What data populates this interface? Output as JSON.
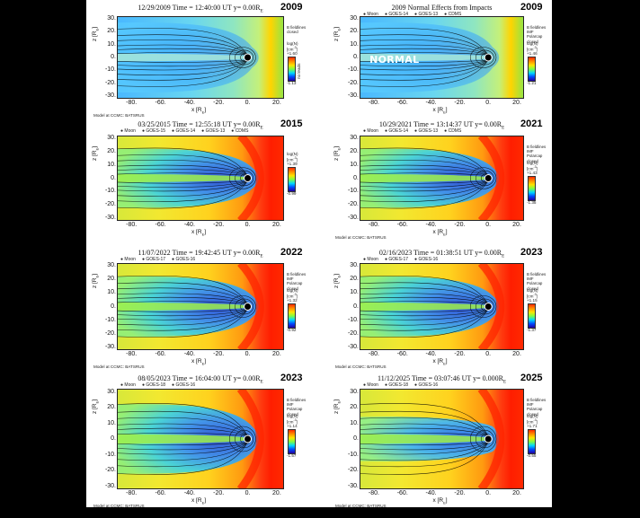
{
  "colors": {
    "page_bg": "#000000",
    "sheet_bg": "#ffffff"
  },
  "panels": [
    {
      "id": "p2009a",
      "title": "12/29/2009 Time = 12:40:00 UT y= 0.00R",
      "subscript": "E",
      "year": "2009",
      "legend": [],
      "field_types": [
        "B fieldlines",
        "closed"
      ],
      "cbar_title": "log(N)",
      "cbar_unit": "[cm",
      "cbar_max": "+1.60",
      "cbar_min": "-1.13",
      "cbar_side_label": "no leads",
      "model": "Model at CCMC: BATSRUS",
      "normal_label": ""
    },
    {
      "id": "p2009b",
      "title": "2009 Normal Effects from Impacts",
      "subscript": "",
      "year": "2009",
      "legend": [
        "Moon",
        "GOES-14",
        "GOES-13",
        "CDMS"
      ],
      "field_types": [
        "B fieldlines",
        "IMF",
        "Polarcap",
        "closed"
      ],
      "cbar_title": "log(N)",
      "cbar_unit": "[cm",
      "cbar_max": "+1.46",
      "cbar_min": "-1.21",
      "cbar_side_label": "",
      "model": "",
      "normal_label": "NORMAL"
    },
    {
      "id": "p2015",
      "title": "03/25/2015 Time = 12:55:18 UT y= 0.00R",
      "subscript": "E",
      "year": "2015",
      "legend": [
        "Moon",
        "GOES-15",
        "GOES-14",
        "GOES-13",
        "CDMS"
      ],
      "field_types": [],
      "cbar_title": "log(N)",
      "cbar_unit": "[cm",
      "cbar_max": "+1.39",
      "cbar_min": "-0.99",
      "cbar_side_label": "",
      "model": "",
      "normal_label": ""
    },
    {
      "id": "p2021",
      "title": "10/29/2021 Time = 13:14:37 UT y= 0.00R",
      "subscript": "E",
      "year": "2021",
      "legend": [
        "Moon",
        "GOES-14",
        "GOES-13",
        "CDMS"
      ],
      "field_types": [
        "B fieldlines",
        "IMF",
        "Polarcap",
        "closed"
      ],
      "cbar_title": "log(N)",
      "cbar_unit": "[cm",
      "cbar_max": "+1.43",
      "cbar_min": "-1.35",
      "cbar_side_label": "",
      "model": "Model at CCMC: BATSRUS",
      "normal_label": ""
    },
    {
      "id": "p2022",
      "title": "11/07/2022 Time = 19:42:45 UT y= 0.00R",
      "subscript": "E",
      "year": "2022",
      "legend": [
        "Moon",
        "GOES-17",
        "GOES-16"
      ],
      "field_types": [
        "B fieldlines",
        "IMF",
        "Polarcap",
        "closed"
      ],
      "cbar_title": "log(N)",
      "cbar_unit": "[cm",
      "cbar_max": "+1.32",
      "cbar_min": "-0.92",
      "cbar_side_label": "",
      "model": "Model at CCMC: BATSRUS",
      "normal_label": ""
    },
    {
      "id": "p2023a",
      "title": "02/16/2023 Time = 01:38:51 UT y= 0.00R",
      "subscript": "E",
      "year": "2023",
      "legend": [
        "Moon",
        "GOES-17",
        "GOES-16"
      ],
      "field_types": [
        "B fieldlines",
        "IMF",
        "Polarcap",
        "closed"
      ],
      "cbar_title": "log(N)",
      "cbar_unit": "[cm",
      "cbar_max": "+1.15",
      "cbar_min": "-1.37",
      "cbar_side_label": "",
      "model": "Model at CCMC: BATSRUS",
      "normal_label": ""
    },
    {
      "id": "p2023b",
      "title": "08/05/2023 Time = 16:04:00 UT y= 0.00R",
      "subscript": "E",
      "year": "2023",
      "legend": [
        "Moon",
        "GOES-18",
        "GOES-16"
      ],
      "field_types": [
        "B fieldlines",
        "IMF",
        "Polarcap",
        "closed"
      ],
      "cbar_title": "log(N)",
      "cbar_unit": "[cm",
      "cbar_max": "+1.14",
      "cbar_min": "-1.57",
      "cbar_side_label": "",
      "model": "Model at CCMC: BATSRUS",
      "normal_label": ""
    },
    {
      "id": "p2025",
      "title": "11/12/2025 Time = 03:07:46 UT y= 0.000R",
      "subscript": "E",
      "year": "2025",
      "legend": [
        "Moon",
        "GOES-18",
        "GOES-16"
      ],
      "field_types": [
        "B fieldlines",
        "IMF",
        "Polarcap",
        "closed"
      ],
      "cbar_title": "log(N)",
      "cbar_unit": "[cm",
      "cbar_max": "+1.71",
      "cbar_min": "-0.55",
      "cbar_side_label": "",
      "model": "Model at CCMC: BATSRUS",
      "normal_label": ""
    }
  ],
  "chart_data": [
    {
      "type": "heatmap",
      "title": "12/29/2009 Time = 12:40:00 UT y= 0.00R",
      "xlabel": "x [R",
      "ylabel": "z [R",
      "xlim": [
        -90,
        25
      ],
      "ylim": [
        -32,
        32
      ],
      "xticks": [
        "-80.",
        "-60.",
        "-40.",
        "-20.",
        "0.",
        "20."
      ],
      "yticks": [
        "30.",
        "20.",
        "10.",
        "0.",
        "-10.",
        "-20.",
        "-30."
      ],
      "color_quantity": "log(N) [cm-3]",
      "color_range": [
        -1.13,
        1.6
      ],
      "tail_profile": "broad",
      "sheath": "weak"
    },
    {
      "type": "heatmap",
      "title": "2009 Normal Effects from Impacts",
      "xlabel": "x [R",
      "ylabel": "z [R",
      "xlim": [
        -90,
        25
      ],
      "ylim": [
        -32,
        32
      ],
      "xticks": [
        "-80.",
        "-60.",
        "-40.",
        "-20.",
        "0.",
        "20."
      ],
      "yticks": [
        "30.",
        "20.",
        "10.",
        "0.",
        "-10.",
        "-20.",
        "-30."
      ],
      "color_quantity": "log(N) [cm-3]",
      "color_range": [
        -1.21,
        1.46
      ],
      "tail_profile": "broad",
      "sheath": "weak"
    },
    {
      "type": "heatmap",
      "title": "03/25/2015 Time = 12:55:18 UT y= 0.00R",
      "xlabel": "x [R",
      "ylabel": "z [R",
      "xlim": [
        -90,
        25
      ],
      "ylim": [
        -32,
        32
      ],
      "xticks": [
        "-80.",
        "-60.",
        "-40.",
        "-20.",
        "0.",
        "20."
      ],
      "yticks": [
        "30.",
        "20.",
        "10.",
        "0.",
        "-10.",
        "-20.",
        "-30."
      ],
      "color_quantity": "log(N) [cm-3]",
      "color_range": [
        -0.99,
        1.39
      ],
      "tail_profile": "lobes",
      "sheath": "strong"
    },
    {
      "type": "heatmap",
      "title": "10/29/2021 Time = 13:14:37 UT y= 0.00R",
      "xlabel": "x [R",
      "ylabel": "z [R",
      "xlim": [
        -90,
        25
      ],
      "ylim": [
        -32,
        32
      ],
      "xticks": [
        "-80.",
        "-60.",
        "-40.",
        "-20.",
        "0.",
        "20."
      ],
      "yticks": [
        "30.",
        "20.",
        "10.",
        "0.",
        "-10.",
        "-20.",
        "-30."
      ],
      "color_quantity": "log(N) [cm-3]",
      "color_range": [
        -1.35,
        1.43
      ],
      "tail_profile": "lobes",
      "sheath": "strong"
    },
    {
      "type": "heatmap",
      "title": "11/07/2022 Time = 19:42:45 UT y= 0.00R",
      "xlabel": "x [R",
      "ylabel": "z [R",
      "xlim": [
        -90,
        25
      ],
      "ylim": [
        -32,
        32
      ],
      "xticks": [
        "-80.",
        "-60.",
        "-40.",
        "-20.",
        "0.",
        "20."
      ],
      "yticks": [
        "30.",
        "20.",
        "10.",
        "0.",
        "-10.",
        "-20.",
        "-30."
      ],
      "color_quantity": "log(N) [cm-3]",
      "color_range": [
        -0.92,
        1.32
      ],
      "tail_profile": "lobes",
      "sheath": "strong"
    },
    {
      "type": "heatmap",
      "title": "02/16/2023 Time = 01:38:51 UT y= 0.00R",
      "xlabel": "x [R",
      "ylabel": "z [R",
      "xlim": [
        -90,
        25
      ],
      "ylim": [
        -32,
        32
      ],
      "xticks": [
        "-80.",
        "-60.",
        "-40.",
        "-20.",
        "0.",
        "20."
      ],
      "yticks": [
        "30.",
        "20.",
        "10.",
        "0.",
        "-10.",
        "-20.",
        "-30."
      ],
      "color_quantity": "log(N) [cm-3]",
      "color_range": [
        -1.37,
        1.15
      ],
      "tail_profile": "lobes",
      "sheath": "strong"
    },
    {
      "type": "heatmap",
      "title": "08/05/2023 Time = 16:04:00 UT y= 0.00R",
      "xlabel": "x [R",
      "ylabel": "z [R",
      "xlim": [
        -90,
        25
      ],
      "ylim": [
        -32,
        32
      ],
      "xticks": [
        "-80.",
        "-60.",
        "-40.",
        "-20.",
        "0.",
        "20."
      ],
      "yticks": [
        "30.",
        "20.",
        "10.",
        "0.",
        "-10.",
        "-20.",
        "-30."
      ],
      "color_quantity": "log(N) [cm-3]",
      "color_range": [
        -1.57,
        1.14
      ],
      "tail_profile": "lobes",
      "sheath": "strong"
    },
    {
      "type": "heatmap",
      "title": "11/12/2025 Time = 03:07:46 UT y= 0.000R",
      "xlabel": "x [R",
      "ylabel": "z [R",
      "xlim": [
        -90,
        25
      ],
      "ylim": [
        -32,
        32
      ],
      "xticks": [
        "-80.",
        "-60.",
        "-40.",
        "-20.",
        "0.",
        "20."
      ],
      "yticks": [
        "30.",
        "20.",
        "10.",
        "0.",
        "-10.",
        "-20.",
        "-30."
      ],
      "color_quantity": "log(N) [cm-3]",
      "color_range": [
        -0.55,
        1.71
      ],
      "tail_profile": "narrow",
      "sheath": "strong"
    }
  ]
}
